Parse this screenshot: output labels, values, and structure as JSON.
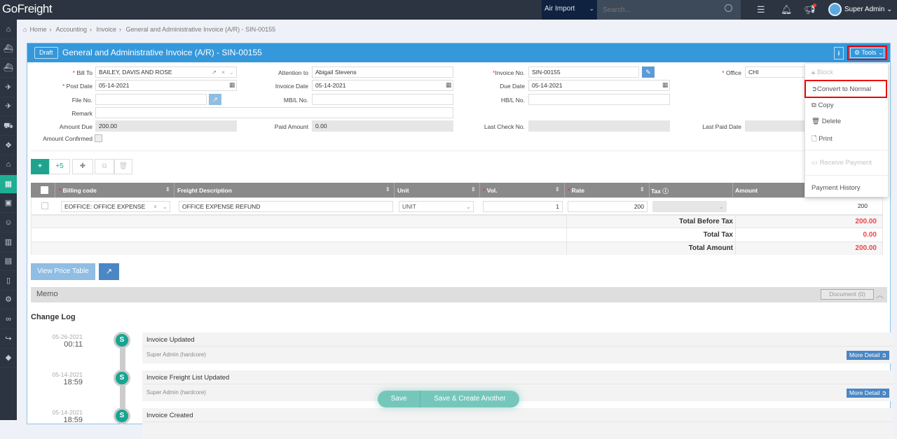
{
  "topbar": {
    "logo": "GoFreight",
    "module": "Air Import",
    "search_placeholder": "Search...",
    "user": "Super Admin",
    "colors": {
      "bar": "#2b3440",
      "module": "#0f2240",
      "accent": "#1fae94"
    }
  },
  "sidebar": {
    "items": [
      "home-icon",
      "ship-export-icon",
      "ship-import-icon",
      "plane-landing-icon",
      "plane-takeoff-icon",
      "truck-icon",
      "boxes-icon",
      "warehouse-icon",
      "calculator-icon",
      "briefcase-icon",
      "contact-icon",
      "bar-chart-icon",
      "document-icon",
      "book-icon",
      "gear-icon",
      "link-icon",
      "share-icon",
      "diamond-icon"
    ],
    "active": "calculator-icon"
  },
  "breadcrumb": [
    "Home",
    "Accounting",
    "Invoice",
    "General and Administrative Invoice (A/R) - SIN-00155"
  ],
  "header": {
    "status": "Draft",
    "title": "General and Administrative Invoice (A/R) - SIN-00155",
    "info": "i",
    "tools": "Tools"
  },
  "form": {
    "bill_to": {
      "label": "Bill To",
      "value": "BAILEY, DAVIS AND ROSE"
    },
    "attention_to": {
      "label": "Attention to",
      "value": "Abigail Stevens"
    },
    "invoice_no": {
      "label": "Invoice No.",
      "value": "SIN-00155"
    },
    "office": {
      "label": "Office",
      "value": "CHI"
    },
    "post_date": {
      "label": "Post Date",
      "value": "05-14-2021"
    },
    "invoice_date": {
      "label": "Invoice Date",
      "value": "05-14-2021"
    },
    "due_date": {
      "label": "Due Date",
      "value": "05-14-2021"
    },
    "file_no": {
      "label": "File No.",
      "value": ""
    },
    "mbl_no": {
      "label": "MB/L No.",
      "value": ""
    },
    "hbl_no": {
      "label": "HB/L No.",
      "value": ""
    },
    "remark": {
      "label": "Remark",
      "value": ""
    },
    "amount_due": {
      "label": "Amount Due",
      "value": "200.00"
    },
    "paid_amount": {
      "label": "Paid Amount",
      "value": "0.00"
    },
    "last_check_no": {
      "label": "Last Check No.",
      "value": ""
    },
    "last_paid_date": {
      "label": "Last Paid Date",
      "value": ""
    },
    "amount_confirmed": {
      "label": "Amount Confirmed",
      "checked": false
    }
  },
  "tools_menu": {
    "items": [
      {
        "label": "Block",
        "disabled": true
      },
      {
        "label": "Convert to Normal",
        "highlighted": true
      },
      {
        "label": "Copy"
      },
      {
        "label": "Delete"
      },
      {
        "label": "Print"
      },
      {
        "label": "Receive Payment",
        "disabled": true
      },
      {
        "label": "Payment History"
      }
    ]
  },
  "toolbar": {
    "add": "+",
    "add5": "+5"
  },
  "grid": {
    "columns": [
      "Billing code",
      "Freight Description",
      "Unit",
      "Vol.",
      "Rate",
      "Tax",
      "Amount"
    ],
    "rows": [
      {
        "billing_code": "EOFFICE: OFFICE EXPENSE",
        "description": "OFFICE EXPENSE REFUND",
        "unit": "UNIT",
        "vol": "1",
        "rate": "200",
        "tax": "",
        "amount": "200"
      }
    ],
    "totals": [
      {
        "label": "Total Before Tax",
        "value": "200.00"
      },
      {
        "label": "Total Tax",
        "value": "0.00"
      },
      {
        "label": "Total Amount",
        "value": "200.00"
      }
    ]
  },
  "buttons": {
    "view_price_table": "View Price Table",
    "save": "Save",
    "save_create": "Save & Create Another"
  },
  "memo": {
    "title": "Memo",
    "document": "Document (0)"
  },
  "change_log": {
    "title": "Change Log",
    "entries": [
      {
        "date": "05-26-2021",
        "time": "00:11",
        "avatar": "S",
        "title": "Invoice Updated",
        "user": "Super Admin (hardcore)",
        "more": "More Detail"
      },
      {
        "date": "05-14-2021",
        "time": "18:59",
        "avatar": "S",
        "title": "Invoice Freight List Updated",
        "user": "Super Admin (hardcore)",
        "more": "More Detail"
      },
      {
        "date": "05-14-2021",
        "time": "18:59",
        "avatar": "S",
        "title": "Invoice Created"
      }
    ]
  }
}
